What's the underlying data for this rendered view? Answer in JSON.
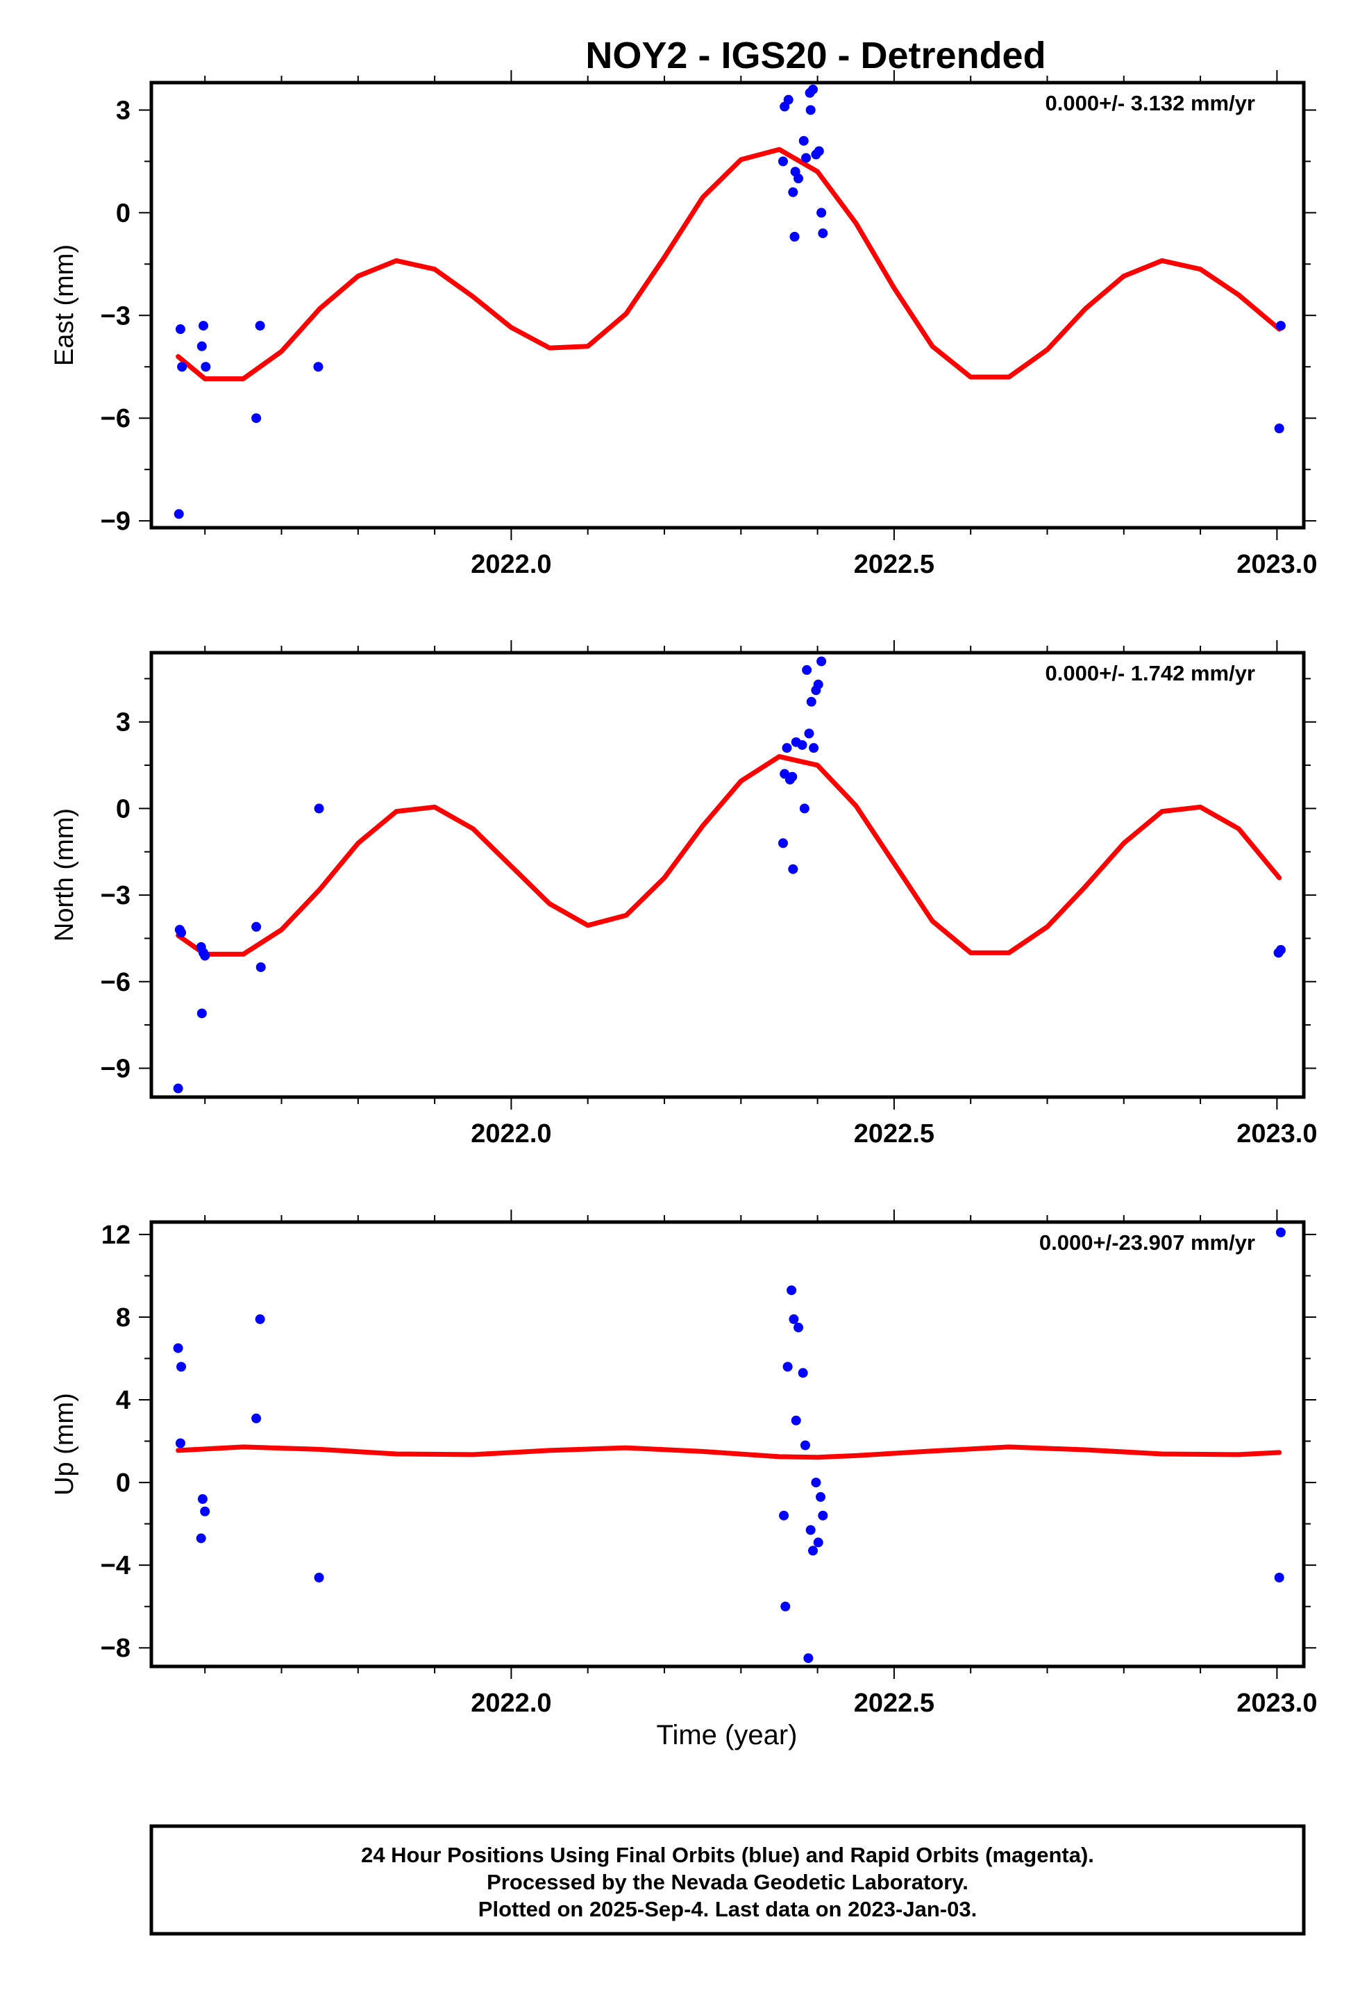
{
  "title": "NOY2 - IGS20 - Detrended",
  "xlabel": "Time (year)",
  "footer": {
    "line1": "24 Hour Positions Using Final Orbits (blue) and Rapid Orbits (magenta).",
    "line2": "Processed by the Nevada Geodetic Laboratory.",
    "line3": "Plotted on 2025-Sep-4. Last data on 2023-Jan-03."
  },
  "colors": {
    "points": "#0000ff",
    "fit": "#ff0000",
    "axes": "#000000"
  },
  "chart_data": [
    {
      "type": "scatter",
      "ylabel": "East (mm)",
      "rate_label": "0.000+/- 3.132 mm/yr",
      "xlim": [
        2021.53,
        2023.035
      ],
      "ylim": [
        -9.2,
        3.8
      ],
      "yticks": [
        3,
        0,
        -3,
        -6,
        -9
      ],
      "xticks": [
        "2022.0",
        "2022.5",
        "2023.0"
      ],
      "points": [
        [
          2021.568,
          -3.4
        ],
        [
          2021.57,
          -4.5
        ],
        [
          2021.596,
          -3.9
        ],
        [
          2021.598,
          -3.3
        ],
        [
          2021.601,
          -4.5
        ],
        [
          2021.566,
          -8.8
        ],
        [
          2021.667,
          -6.0
        ],
        [
          2021.672,
          -3.3
        ],
        [
          2021.748,
          -4.5
        ],
        [
          2022.357,
          3.1
        ],
        [
          2022.362,
          3.3
        ],
        [
          2022.355,
          1.5
        ],
        [
          2022.368,
          0.6
        ],
        [
          2022.371,
          1.2
        ],
        [
          2022.375,
          1.0
        ],
        [
          2022.382,
          2.1
        ],
        [
          2022.385,
          1.6
        ],
        [
          2022.39,
          3.5
        ],
        [
          2022.394,
          3.6
        ],
        [
          2022.391,
          3.0
        ],
        [
          2022.398,
          1.7
        ],
        [
          2022.402,
          1.8
        ],
        [
          2022.405,
          0.0
        ],
        [
          2022.407,
          -0.6
        ],
        [
          2022.37,
          -0.7
        ],
        [
          2023.005,
          -3.3
        ],
        [
          2023.003,
          -6.3
        ]
      ],
      "fit": {
        "x": [
          2021.565,
          2021.6,
          2021.65,
          2021.7,
          2021.75,
          2021.8,
          2021.85,
          2021.9,
          2021.95,
          2022.0,
          2022.05,
          2022.1,
          2022.15,
          2022.2,
          2022.25,
          2022.3,
          2022.35,
          2022.4,
          2022.45,
          2022.5,
          2022.55,
          2022.6,
          2022.65,
          2022.7,
          2022.75,
          2022.8,
          2022.85,
          2022.9,
          2022.95,
          2023.003
        ],
        "y": [
          -4.2,
          -4.85,
          -4.85,
          -4.05,
          -2.8,
          -1.85,
          -1.4,
          -1.65,
          -2.45,
          -3.35,
          -3.95,
          -3.9,
          -2.95,
          -1.3,
          0.45,
          1.55,
          1.85,
          1.2,
          -0.3,
          -2.2,
          -3.9,
          -4.8,
          -4.8,
          -4.0,
          -2.8,
          -1.85,
          -1.4,
          -1.65,
          -2.4,
          -3.4
        ]
      }
    },
    {
      "type": "scatter",
      "ylabel": "North (mm)",
      "rate_label": "0.000+/- 1.742 mm/yr",
      "xlim": [
        2021.53,
        2023.035
      ],
      "ylim": [
        -10.0,
        5.4
      ],
      "yticks": [
        3,
        0,
        -3,
        -6,
        -9
      ],
      "xticks": [
        "2022.0",
        "2022.5",
        "2023.0"
      ],
      "points": [
        [
          2021.567,
          -4.2
        ],
        [
          2021.569,
          -4.3
        ],
        [
          2021.595,
          -4.8
        ],
        [
          2021.598,
          -5.0
        ],
        [
          2021.6,
          -5.1
        ],
        [
          2021.596,
          -7.1
        ],
        [
          2021.565,
          -9.7
        ],
        [
          2021.667,
          -4.1
        ],
        [
          2021.673,
          -5.5
        ],
        [
          2021.749,
          0.0
        ],
        [
          2022.355,
          -1.2
        ],
        [
          2022.357,
          1.2
        ],
        [
          2022.36,
          2.1
        ],
        [
          2022.364,
          1.0
        ],
        [
          2022.367,
          1.1
        ],
        [
          2022.372,
          2.3
        ],
        [
          2022.38,
          2.2
        ],
        [
          2022.383,
          0.0
        ],
        [
          2022.386,
          4.8
        ],
        [
          2022.389,
          2.6
        ],
        [
          2022.392,
          3.7
        ],
        [
          2022.395,
          2.1
        ],
        [
          2022.398,
          4.1
        ],
        [
          2022.401,
          4.3
        ],
        [
          2022.405,
          5.1
        ],
        [
          2022.368,
          -2.1
        ],
        [
          2023.002,
          -5.0
        ],
        [
          2023.005,
          -4.9
        ]
      ],
      "fit": {
        "x": [
          2021.565,
          2021.6,
          2021.65,
          2021.7,
          2021.75,
          2021.8,
          2021.85,
          2021.9,
          2021.95,
          2022.0,
          2022.05,
          2022.1,
          2022.15,
          2022.2,
          2022.25,
          2022.3,
          2022.35,
          2022.4,
          2022.45,
          2022.5,
          2022.55,
          2022.6,
          2022.65,
          2022.7,
          2022.75,
          2022.8,
          2022.85,
          2022.9,
          2022.95,
          2023.003
        ],
        "y": [
          -4.4,
          -5.05,
          -5.05,
          -4.2,
          -2.8,
          -1.2,
          -0.1,
          0.05,
          -0.7,
          -2.0,
          -3.3,
          -4.05,
          -3.7,
          -2.4,
          -0.6,
          0.95,
          1.8,
          1.5,
          0.1,
          -1.9,
          -3.9,
          -5.0,
          -5.0,
          -4.1,
          -2.7,
          -1.2,
          -0.1,
          0.05,
          -0.7,
          -2.4
        ]
      }
    },
    {
      "type": "scatter",
      "ylabel": "Up (mm)",
      "rate_label": "0.000+/-23.907 mm/yr",
      "xlim": [
        2021.53,
        2023.035
      ],
      "ylim": [
        -8.9,
        12.6
      ],
      "yticks": [
        12,
        8,
        4,
        0,
        -4,
        -8
      ],
      "xticks": [
        "2022.0",
        "2022.5",
        "2023.0"
      ],
      "points": [
        [
          2021.565,
          6.5
        ],
        [
          2021.569,
          5.6
        ],
        [
          2021.568,
          1.9
        ],
        [
          2021.597,
          -0.8
        ],
        [
          2021.6,
          -1.4
        ],
        [
          2021.595,
          -2.7
        ],
        [
          2021.667,
          3.1
        ],
        [
          2021.672,
          7.9
        ],
        [
          2021.749,
          -4.6
        ],
        [
          2022.356,
          -1.6
        ],
        [
          2022.358,
          -6.0
        ],
        [
          2022.361,
          5.6
        ],
        [
          2022.366,
          9.3
        ],
        [
          2022.369,
          7.9
        ],
        [
          2022.372,
          3.0
        ],
        [
          2022.375,
          7.5
        ],
        [
          2022.381,
          5.3
        ],
        [
          2022.384,
          1.8
        ],
        [
          2022.388,
          -8.5
        ],
        [
          2022.391,
          -2.3
        ],
        [
          2022.394,
          -3.3
        ],
        [
          2022.398,
          0.0
        ],
        [
          2022.401,
          -2.9
        ],
        [
          2022.404,
          -0.7
        ],
        [
          2022.407,
          -1.6
        ],
        [
          2023.003,
          -4.6
        ],
        [
          2023.005,
          12.1
        ]
      ],
      "fit": {
        "x": [
          2021.565,
          2021.65,
          2021.75,
          2021.85,
          2021.95,
          2022.05,
          2022.15,
          2022.25,
          2022.35,
          2022.4,
          2022.45,
          2022.55,
          2022.65,
          2022.75,
          2022.85,
          2022.95,
          2023.003
        ],
        "y": [
          1.55,
          1.72,
          1.6,
          1.38,
          1.35,
          1.55,
          1.68,
          1.5,
          1.25,
          1.22,
          1.3,
          1.52,
          1.72,
          1.58,
          1.38,
          1.35,
          1.45
        ]
      }
    }
  ]
}
